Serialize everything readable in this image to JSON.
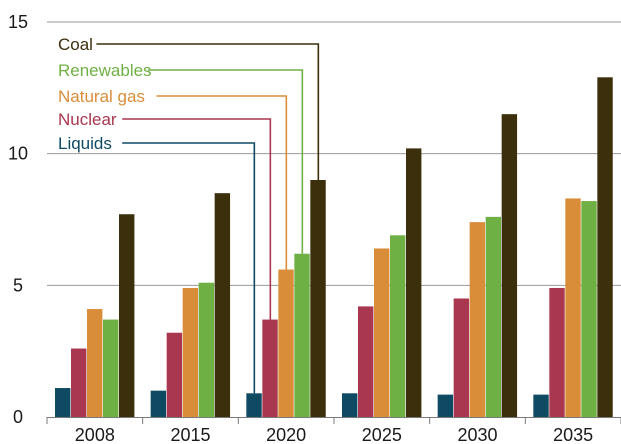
{
  "chart_data": {
    "type": "bar",
    "title": "",
    "xlabel": "",
    "ylabel": "",
    "ylim": [
      0,
      15
    ],
    "yticks": [
      0,
      5,
      10,
      15
    ],
    "grid": true,
    "legend_placement": "top-left",
    "categories": [
      "2008",
      "2015",
      "2020",
      "2025",
      "2030",
      "2035"
    ],
    "series": [
      {
        "name": "Liquids",
        "color": "#0f4a63",
        "values": [
          1.1,
          1.0,
          0.9,
          0.9,
          0.85,
          0.85
        ]
      },
      {
        "name": "Nuclear",
        "color": "#a8374f",
        "values": [
          2.6,
          3.2,
          3.7,
          4.2,
          4.5,
          4.9
        ]
      },
      {
        "name": "Natural gas",
        "color": "#d98d38",
        "values": [
          4.1,
          4.9,
          5.6,
          6.4,
          7.4,
          8.3
        ]
      },
      {
        "name": "Renewables",
        "color": "#6fb045",
        "values": [
          3.7,
          5.1,
          6.2,
          6.9,
          7.6,
          8.2
        ]
      },
      {
        "name": "Coal",
        "color": "#3c2f0c",
        "values": [
          7.7,
          8.5,
          9.0,
          10.2,
          11.5,
          12.9
        ]
      }
    ],
    "legend_order": [
      "Coal",
      "Renewables",
      "Natural gas",
      "Nuclear",
      "Liquids"
    ]
  }
}
